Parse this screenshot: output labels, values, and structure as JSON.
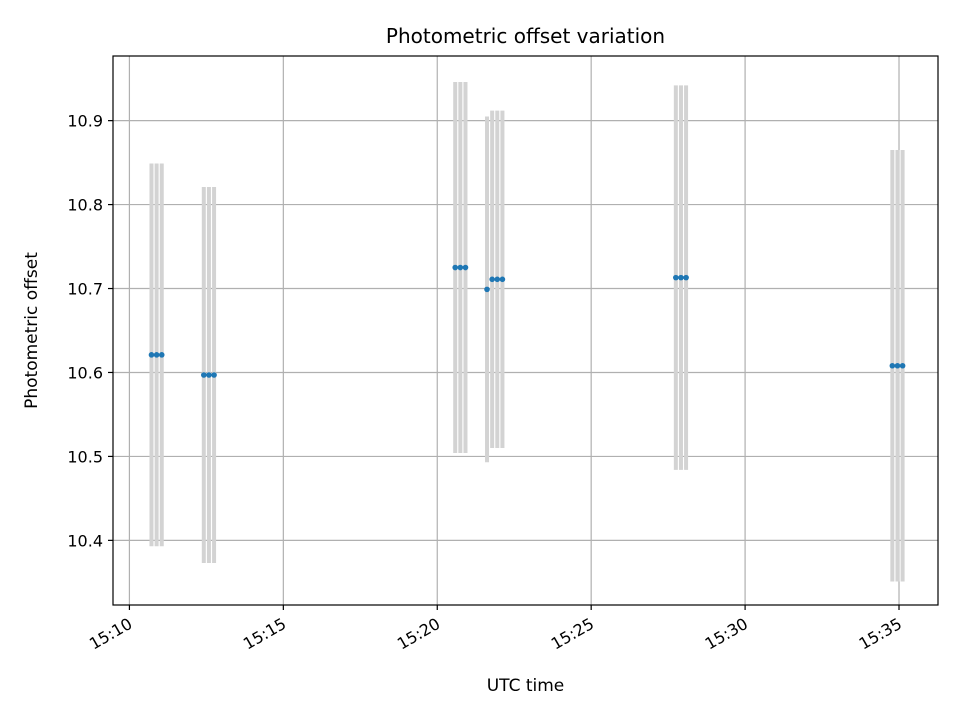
{
  "chart_data": {
    "type": "scatter",
    "title": "Photometric offset variation",
    "xlabel": "UTC time",
    "ylabel": "Photometric offset",
    "grid": true,
    "x_ticks": [
      "15:10",
      "15:15",
      "15:20",
      "15:25",
      "15:30",
      "15:35"
    ],
    "y_ticks": [
      10.4,
      10.5,
      10.6,
      10.7,
      10.8,
      10.9
    ],
    "xlim": [
      "15:09:28",
      "15:36:16"
    ],
    "ylim": [
      10.323,
      10.977
    ],
    "colors": {
      "marker": "#1f77b4",
      "errorbar": "#d3d3d3",
      "grid": "#b0b0b0"
    },
    "points": [
      {
        "x": "15:10:43",
        "y": 10.621,
        "err": 0.228
      },
      {
        "x": "15:10:53",
        "y": 10.621,
        "err": 0.228
      },
      {
        "x": "15:11:03",
        "y": 10.621,
        "err": 0.228
      },
      {
        "x": "15:12:25",
        "y": 10.597,
        "err": 0.224
      },
      {
        "x": "15:12:35",
        "y": 10.597,
        "err": 0.224
      },
      {
        "x": "15:12:45",
        "y": 10.597,
        "err": 0.224
      },
      {
        "x": "15:20:35",
        "y": 10.725,
        "err": 0.221
      },
      {
        "x": "15:20:45",
        "y": 10.725,
        "err": 0.221
      },
      {
        "x": "15:20:55",
        "y": 10.725,
        "err": 0.221
      },
      {
        "x": "15:21:37",
        "y": 10.699,
        "err": 0.206
      },
      {
        "x": "15:21:47",
        "y": 10.711,
        "err": 0.201
      },
      {
        "x": "15:21:57",
        "y": 10.711,
        "err": 0.201
      },
      {
        "x": "15:22:07",
        "y": 10.711,
        "err": 0.201
      },
      {
        "x": "15:27:45",
        "y": 10.713,
        "err": 0.229
      },
      {
        "x": "15:27:55",
        "y": 10.713,
        "err": 0.229
      },
      {
        "x": "15:28:05",
        "y": 10.713,
        "err": 0.229
      },
      {
        "x": "15:34:47",
        "y": 10.608,
        "err": 0.257
      },
      {
        "x": "15:34:57",
        "y": 10.608,
        "err": 0.257
      },
      {
        "x": "15:35:07",
        "y": 10.608,
        "err": 0.257
      }
    ]
  }
}
